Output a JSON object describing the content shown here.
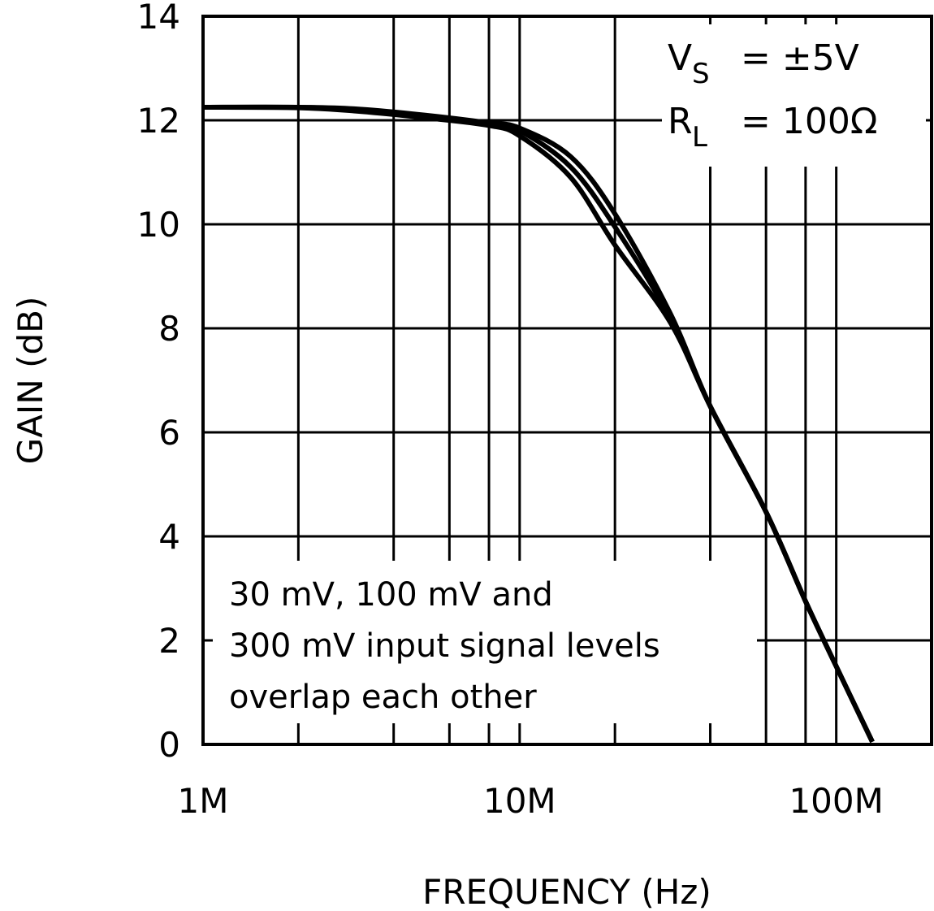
{
  "chart_data": {
    "type": "line",
    "title": "",
    "xlabel": "FREQUENCY (Hz)",
    "ylabel": "GAIN (dB)",
    "x_scale": "log",
    "xlim": [
      1000000,
      200000000
    ],
    "ylim": [
      0,
      14
    ],
    "grid": true,
    "x_gridlines": [
      2000000,
      4000000,
      6000000,
      8000000,
      10000000,
      20000000,
      40000000,
      60000000,
      80000000,
      100000000
    ],
    "x_ticks": [
      {
        "value": 1000000,
        "label": "1M"
      },
      {
        "value": 10000000,
        "label": "10M"
      },
      {
        "value": 100000000,
        "label": "100M"
      }
    ],
    "y_ticks": [
      0,
      2,
      4,
      6,
      8,
      10,
      12,
      14
    ],
    "annotations": {
      "vs_label": "V",
      "vs_sub": "S",
      "vs_value": "= ±5V",
      "rl_label": "R",
      "rl_sub": "L",
      "rl_value": "= 100Ω",
      "note_lines": [
        "30 mV, 100 mV and",
        "300 mV input signal levels",
        "overlap each other"
      ]
    },
    "line_color": "#000000",
    "series": [
      {
        "x": [
          1000000,
          2000000,
          3000000,
          5000000,
          8000000,
          10000000,
          14500000,
          20000000,
          30000000,
          40000000,
          60000000,
          80000000,
          100000000,
          130000000
        ],
        "y": [
          12.25,
          12.25,
          12.22,
          12.1,
          11.95,
          11.85,
          11.3,
          10.2,
          8.27,
          6.5,
          4.47,
          2.75,
          1.5,
          0.05
        ]
      },
      {
        "x": [
          1000000,
          2000000,
          3000000,
          5000000,
          8000000,
          10000000,
          14500000,
          20000000,
          30000000,
          40000000,
          60000000,
          80000000,
          100000000,
          130000000
        ],
        "y": [
          12.25,
          12.25,
          12.2,
          12.08,
          11.93,
          11.8,
          11.1,
          9.95,
          8.18,
          6.5,
          4.47,
          2.75,
          1.5,
          0.05
        ]
      },
      {
        "x": [
          1000000,
          2000000,
          3000000,
          5000000,
          8000000,
          10000000,
          14500000,
          20000000,
          30000000,
          40000000,
          60000000,
          80000000,
          100000000,
          130000000
        ],
        "y": [
          12.25,
          12.24,
          12.18,
          12.05,
          11.9,
          11.7,
          10.9,
          9.6,
          8.1,
          6.5,
          4.47,
          2.75,
          1.5,
          0.05
        ]
      }
    ]
  }
}
